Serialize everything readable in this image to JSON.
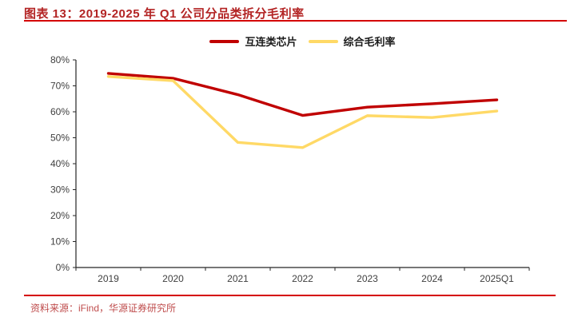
{
  "title": "图表 13：2019-2025 年 Q1 公司分品类拆分毛利率",
  "footer": {
    "source": "资料来源：iFind，华源证券研究所"
  },
  "colors": {
    "title_red": "#b32424",
    "rule_red": "#d40000",
    "axis_line": "#262626",
    "axis_text": "#404040",
    "footer_text": "#bf4c4c"
  },
  "chart_data": {
    "type": "line",
    "title": "2019-2025年Q1公司分品类拆分毛利率",
    "categories": [
      "2019",
      "2020",
      "2021",
      "2022",
      "2023",
      "2024",
      "2025Q1"
    ],
    "series": [
      {
        "name": "互连类芯片",
        "color": "#c00000",
        "values": [
          74.8,
          72.9,
          66.6,
          58.6,
          61.8,
          63.1,
          64.6
        ]
      },
      {
        "name": "综合毛利率",
        "color": "#ffd966",
        "values": [
          73.6,
          72.0,
          48.2,
          46.2,
          58.5,
          57.8,
          60.3
        ]
      }
    ],
    "unit": "percent",
    "ylim": [
      0,
      80
    ],
    "ytick_step": 10,
    "ytick_labels": [
      "0%",
      "10%",
      "20%",
      "30%",
      "40%",
      "50%",
      "60%",
      "70%",
      "80%"
    ],
    "grid": false,
    "legend_position": "top-center"
  }
}
